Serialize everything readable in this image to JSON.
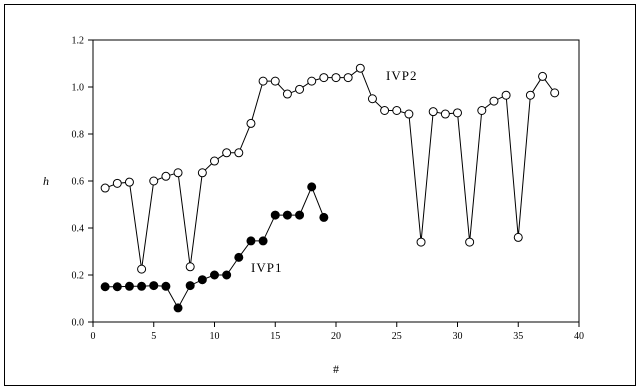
{
  "chart_data": {
    "type": "line",
    "title": "",
    "xlabel": "#",
    "ylabel": "h",
    "xlim": [
      0,
      40
    ],
    "ylim": [
      0.0,
      1.2
    ],
    "x_ticks": [
      "0",
      "5",
      "10",
      "15",
      "20",
      "25",
      "30",
      "35",
      "40"
    ],
    "y_ticks": [
      "0.0",
      "0.2",
      "0.4",
      "0.6",
      "0.8",
      "1.0",
      "1.2"
    ],
    "grid": false,
    "legend": "none",
    "series": [
      {
        "name": "IVP1",
        "marker": "filled-circle",
        "color": "#000000",
        "x": [
          1,
          2,
          3,
          4,
          5,
          6,
          7,
          8,
          9,
          10,
          11,
          12,
          13,
          14,
          15,
          16,
          17,
          18,
          19
        ],
        "values": [
          0.15,
          0.15,
          0.152,
          0.152,
          0.155,
          0.152,
          0.06,
          0.155,
          0.18,
          0.2,
          0.2,
          0.275,
          0.345,
          0.345,
          0.455,
          0.455,
          0.455,
          0.575,
          0.445
        ]
      },
      {
        "name": "IVP2",
        "marker": "open-circle",
        "color": "#000000",
        "x": [
          1,
          2,
          3,
          4,
          5,
          6,
          7,
          8,
          9,
          10,
          11,
          12,
          13,
          14,
          15,
          16,
          17,
          18,
          19,
          20,
          21,
          22,
          23,
          24,
          25,
          26,
          27,
          28,
          29,
          30,
          31,
          32,
          33,
          34,
          35,
          36,
          37,
          38
        ],
        "values": [
          0.57,
          0.59,
          0.595,
          0.225,
          0.6,
          0.62,
          0.635,
          0.235,
          0.635,
          0.685,
          0.72,
          0.72,
          0.845,
          1.025,
          1.025,
          0.97,
          0.99,
          1.025,
          1.04,
          1.04,
          1.04,
          1.08,
          0.95,
          0.9,
          0.9,
          0.885,
          0.34,
          0.895,
          0.885,
          0.89,
          0.34,
          0.9,
          0.94,
          0.965,
          0.36,
          0.965,
          1.045,
          0.975
        ]
      }
    ]
  }
}
